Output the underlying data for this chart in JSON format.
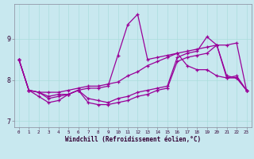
{
  "xlabel": "Windchill (Refroidissement éolien,°C)",
  "bg_color": "#c8e8ef",
  "grid_color": "#aacccc",
  "line_color": "#990099",
  "hours": [
    0,
    1,
    2,
    3,
    4,
    5,
    6,
    7,
    8,
    9,
    10,
    11,
    12,
    13,
    14,
    15,
    16,
    17,
    18,
    19,
    20,
    21,
    22,
    23
  ],
  "series": [
    [
      8.5,
      7.75,
      7.7,
      7.7,
      7.7,
      7.75,
      7.8,
      7.85,
      7.85,
      7.9,
      7.95,
      8.1,
      8.2,
      8.35,
      8.45,
      8.55,
      8.65,
      8.7,
      8.75,
      8.8,
      8.85,
      8.85,
      8.9,
      7.75
    ],
    [
      8.5,
      7.75,
      7.7,
      7.6,
      7.65,
      7.65,
      7.75,
      7.8,
      7.8,
      7.85,
      8.6,
      9.35,
      9.6,
      8.5,
      8.55,
      8.6,
      8.65,
      8.35,
      8.25,
      8.25,
      8.1,
      8.05,
      8.1,
      7.75
    ],
    [
      8.5,
      7.75,
      7.7,
      7.55,
      7.6,
      7.65,
      7.75,
      7.55,
      7.5,
      7.45,
      7.55,
      7.6,
      7.7,
      7.75,
      7.8,
      7.85,
      8.55,
      8.65,
      8.7,
      9.05,
      8.85,
      8.1,
      8.05,
      7.75
    ],
    [
      8.5,
      7.75,
      7.6,
      7.45,
      7.5,
      7.65,
      7.75,
      7.45,
      7.4,
      7.4,
      7.45,
      7.5,
      7.6,
      7.65,
      7.75,
      7.8,
      8.45,
      8.55,
      8.6,
      8.65,
      8.85,
      8.05,
      8.05,
      7.75
    ]
  ],
  "ylim": [
    6.85,
    9.85
  ],
  "xlim": [
    -0.5,
    23.5
  ],
  "yticks": [
    7,
    8,
    9
  ],
  "xtick_labels": [
    "0",
    "1",
    "2",
    "3",
    "4",
    "5",
    "6",
    "7",
    "8",
    "9",
    "10",
    "11",
    "12",
    "13",
    "14",
    "15",
    "16",
    "17",
    "18",
    "19",
    "20",
    "21",
    "22",
    "23"
  ]
}
